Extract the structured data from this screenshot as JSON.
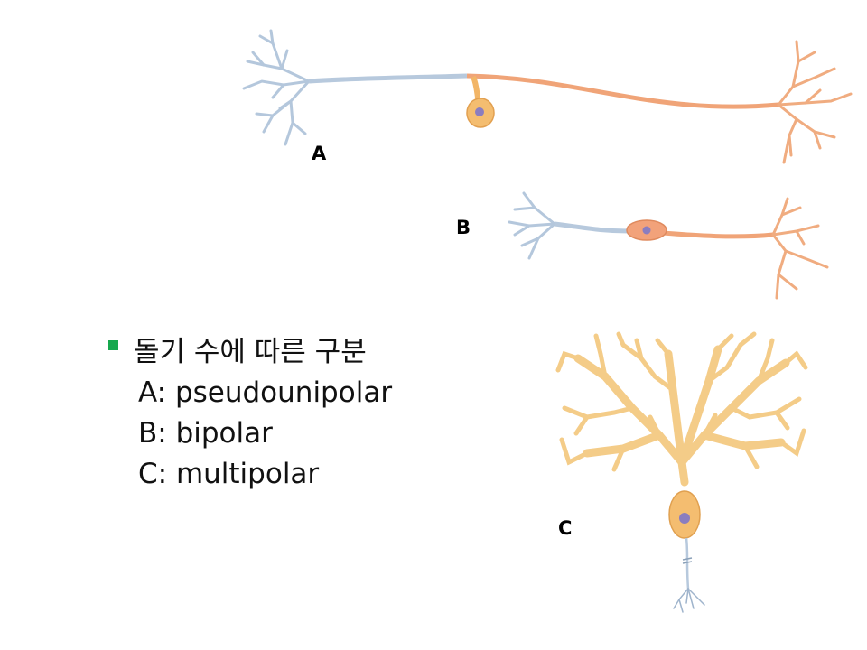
{
  "labels": {
    "a": "A",
    "b": "B",
    "c": "C"
  },
  "text": {
    "heading": "돌기 수에 따른 구분",
    "items": [
      "A: pseudounipolar",
      "B: bipolar",
      "C: multipolar"
    ]
  },
  "colors": {
    "bullet": "#16a84e",
    "dendrite_blue": "#aec0d6",
    "axon_orange": "#f0a478",
    "soma": "#f2b566",
    "nucleus": "#8b7dbf",
    "purkinje": "#f4cc88"
  }
}
